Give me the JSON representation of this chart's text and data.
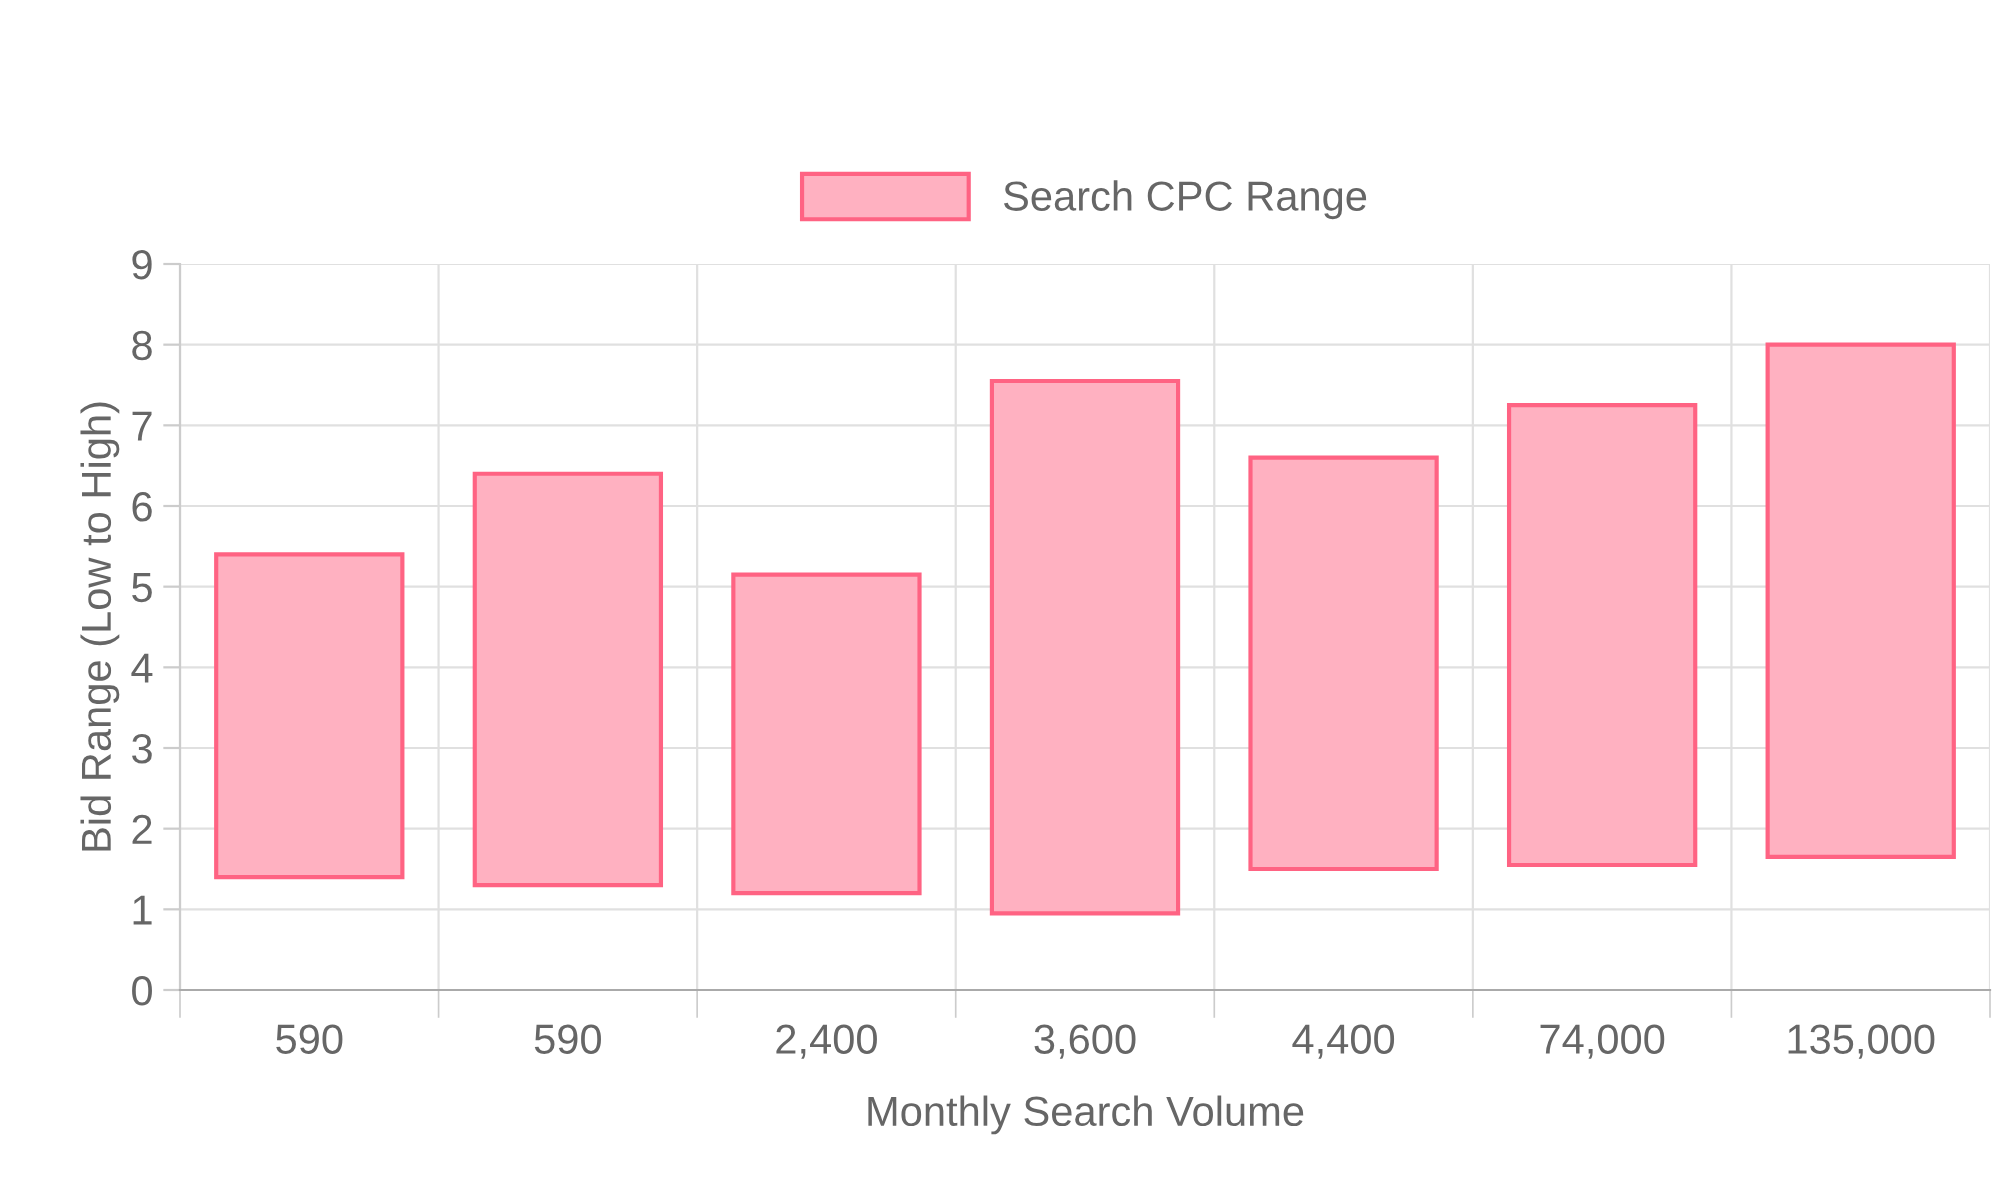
{
  "chart_data": {
    "type": "bar",
    "xlabel": "Monthly Search Volume",
    "ylabel": "Bid Range (Low to High)",
    "categories": [
      "590",
      "590",
      "2,400",
      "3,600",
      "4,400",
      "74,000",
      "135,000"
    ],
    "series": [
      {
        "name": "Search CPC Range",
        "color": "#ffb1c1",
        "base": [
          1.4,
          1.3,
          1.2,
          0.95,
          1.5,
          1.55,
          1.65
        ],
        "values": [
          4.0,
          5.1,
          3.95,
          6.6,
          5.1,
          5.7,
          6.35
        ]
      }
    ],
    "ylim": [
      0,
      9
    ],
    "yticks": [
      0,
      1,
      2,
      3,
      4,
      5,
      6,
      7,
      8,
      9
    ],
    "grid": true,
    "legend": "top"
  }
}
